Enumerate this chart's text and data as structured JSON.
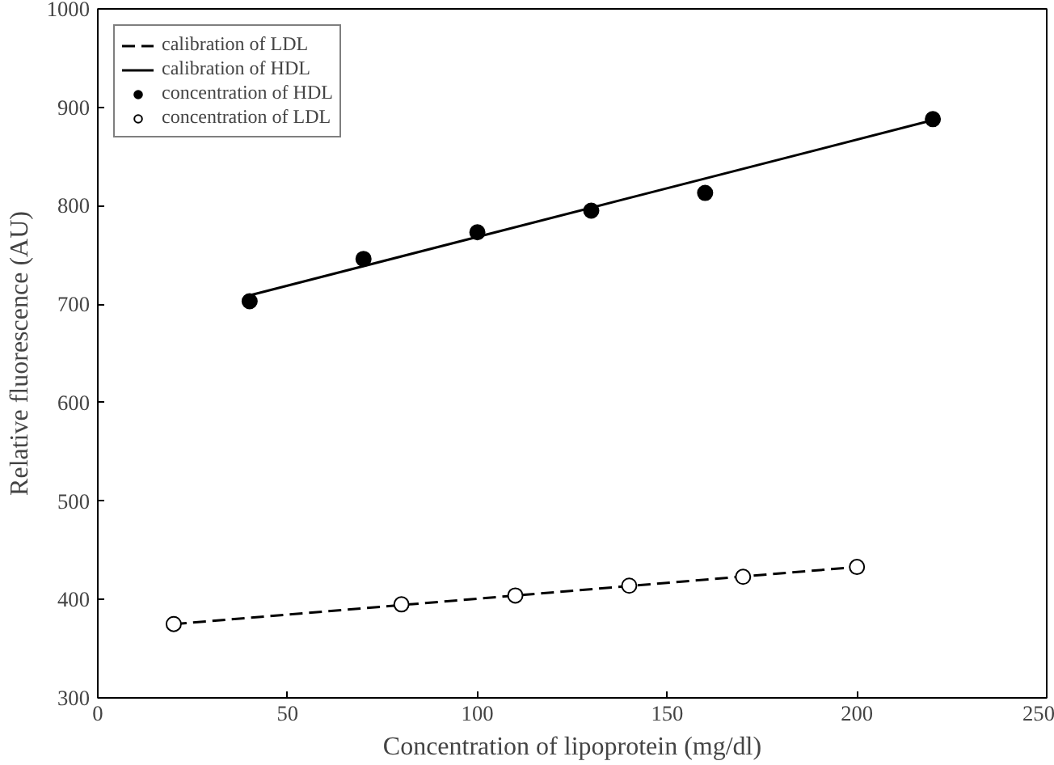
{
  "chart_data": {
    "type": "scatter",
    "xlabel": "Concentration of lipoprotein (mg/dl)",
    "ylabel": "Relative fluorescence (AU)",
    "xlim": [
      0,
      250
    ],
    "xticks": [
      0,
      50,
      100,
      150,
      200,
      250
    ],
    "ylim": [
      300,
      1000
    ],
    "yticks": [
      300,
      400,
      500,
      600,
      700,
      800,
      900,
      1000
    ],
    "grid": false,
    "legend": "top left",
    "series": [
      {
        "name": "calibration of LDL",
        "type": "line",
        "line_style": "dashed",
        "marker": "none",
        "color": "#000000",
        "x": [
          20,
          200
        ],
        "values": [
          375,
          433
        ]
      },
      {
        "name": "calibration of HDL",
        "type": "line",
        "line_style": "solid",
        "marker": "none",
        "color": "#000000",
        "x": [
          40,
          220
        ],
        "values": [
          709,
          887
        ]
      },
      {
        "name": "concentration of HDL",
        "marker": "circle",
        "color": "#000000",
        "x": [
          40,
          70,
          100,
          130,
          160,
          220
        ],
        "values": [
          703,
          746,
          773,
          795,
          813,
          888
        ]
      },
      {
        "name": "concentration of LDL",
        "marker": "circle",
        "color": "#ffffff",
        "x": [
          20,
          80,
          110,
          140,
          170,
          200
        ],
        "values": [
          375,
          395,
          404,
          414,
          423,
          433
        ]
      }
    ]
  }
}
